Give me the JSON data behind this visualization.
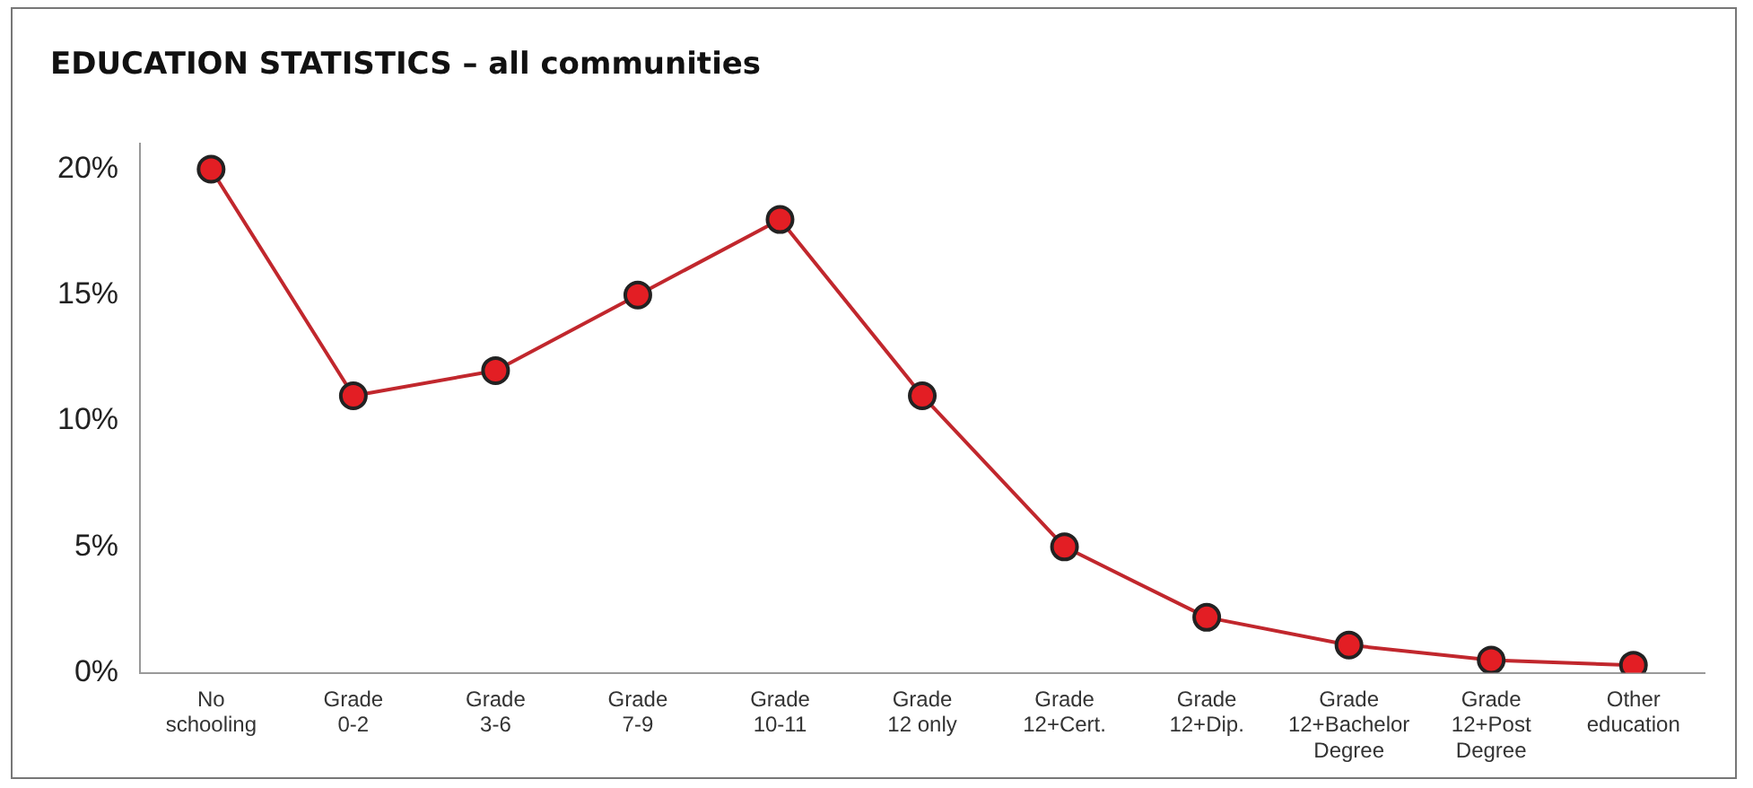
{
  "chart_data": {
    "type": "line",
    "title": "EDUCATION STATISTICS – all communities",
    "categories": [
      "No\nschooling",
      "Grade\n0-2",
      "Grade\n3-6",
      "Grade\n7-9",
      "Grade\n10-11",
      "Grade\n12 only",
      "Grade\n12+Cert.",
      "Grade\n12+Dip.",
      "Grade\n12+Bachelor\nDegree",
      "Grade\n12+Post\nDegree",
      "Other\neducation"
    ],
    "series": [
      {
        "color": "#c1272d",
        "values": [
          20,
          11,
          12,
          15,
          18,
          11,
          5,
          2.2,
          1.1,
          0.5,
          0.3
        ]
      }
    ],
    "ylim": [
      0,
      21
    ],
    "yticks": [
      {
        "value": 0,
        "label": "0%"
      },
      {
        "value": 5,
        "label": "5%"
      },
      {
        "value": 10,
        "label": "10%"
      },
      {
        "value": 15,
        "label": "15%"
      },
      {
        "value": 20,
        "label": "20%"
      }
    ],
    "grid": false,
    "marker": "circle",
    "line_style": "solid"
  }
}
